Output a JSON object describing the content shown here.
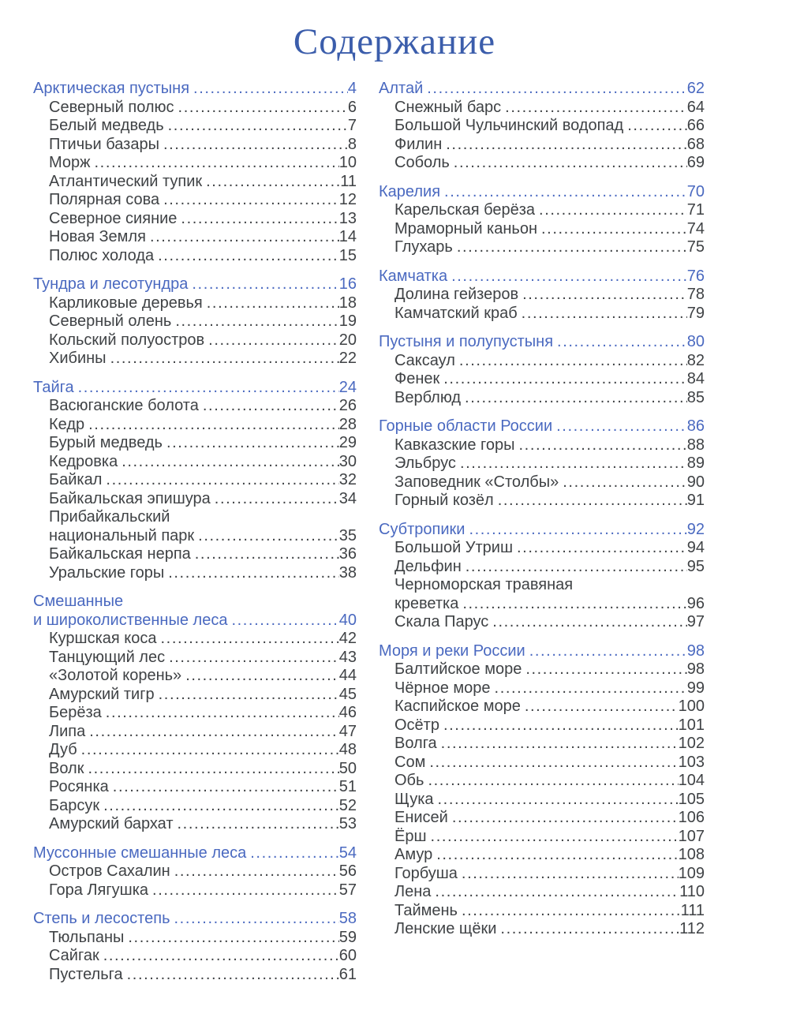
{
  "title": "Содержание",
  "colors": {
    "title_blue": "#3b5dab",
    "heading_blue": "#4a69c0",
    "text_gray": "#3f4245"
  },
  "columns": [
    {
      "sections": [
        {
          "title": "Арктическая пустыня",
          "page": "4",
          "items": [
            [
              "Северный полюс",
              "6"
            ],
            [
              "Белый медведь",
              "7"
            ],
            [
              "Птичьи базары",
              "8"
            ],
            [
              "Морж",
              "10"
            ],
            [
              "Атлантический тупик",
              "11"
            ],
            [
              "Полярная сова",
              "12"
            ],
            [
              "Северное сияние",
              "13"
            ],
            [
              "Новая Земля",
              "14"
            ],
            [
              "Полюс холода",
              "15"
            ]
          ]
        },
        {
          "title": "Тундра и лесотундра",
          "page": "16",
          "items": [
            [
              "Карликовые деревья",
              "18"
            ],
            [
              "Северный олень",
              "19"
            ],
            [
              "Кольский полуостров",
              "20"
            ],
            [
              "Хибины",
              "22"
            ]
          ]
        },
        {
          "title": "Тайга",
          "page": "24",
          "items": [
            [
              "Васюганские болота",
              "26"
            ],
            [
              "Кедр",
              "28"
            ],
            [
              "Бурый медведь",
              "29"
            ],
            [
              "Кедровка",
              "30"
            ],
            [
              "Байкал",
              "32"
            ],
            [
              "Байкальская эпишура",
              "34"
            ],
            [
              "Прибайкальский\nнациональный парк",
              "35"
            ],
            [
              "Байкальская нерпа",
              "36"
            ],
            [
              "Уральские горы",
              "38"
            ]
          ]
        },
        {
          "title": "Смешанные\nи широколиственные леса",
          "page": "40",
          "items": [
            [
              "Куршская коса",
              "42"
            ],
            [
              "Танцующий лес",
              "43"
            ],
            [
              "«Золотой корень»",
              "44"
            ],
            [
              "Амурский тигр",
              "45"
            ],
            [
              "Берёза",
              "46"
            ],
            [
              "Липа",
              "47"
            ],
            [
              "Дуб",
              "48"
            ],
            [
              "Волк",
              "50"
            ],
            [
              "Росянка",
              "51"
            ],
            [
              "Барсук",
              "52"
            ],
            [
              "Амурский бархат",
              "53"
            ]
          ]
        },
        {
          "title": "Муссонные смешанные леса",
          "page": "54",
          "items": [
            [
              "Остров Сахалин",
              "56"
            ],
            [
              "Гора Лягушка",
              "57"
            ]
          ]
        },
        {
          "title": "Степь и лесостепь",
          "page": "58",
          "items": [
            [
              "Тюльпаны",
              "59"
            ],
            [
              "Сайгак",
              "60"
            ],
            [
              "Пустельга",
              "61"
            ]
          ]
        }
      ]
    },
    {
      "sections": [
        {
          "title": "Алтай",
          "page": "62",
          "items": [
            [
              "Снежный барс",
              "64"
            ],
            [
              "Большой Чульчинский водопад",
              "66"
            ],
            [
              "Филин",
              "68"
            ],
            [
              "Соболь",
              "69"
            ]
          ]
        },
        {
          "title": "Карелия",
          "page": "70",
          "items": [
            [
              "Карельская берёза",
              "71"
            ],
            [
              "Мраморный каньон",
              "74"
            ],
            [
              "Глухарь",
              "75"
            ]
          ]
        },
        {
          "title": "Камчатка",
          "page": "76",
          "items": [
            [
              "Долина гейзеров",
              "78"
            ],
            [
              "Камчатский краб",
              "79"
            ]
          ]
        },
        {
          "title": "Пустыня и полупустыня",
          "page": "80",
          "items": [
            [
              "Саксаул",
              "82"
            ],
            [
              "Фенек",
              "84"
            ],
            [
              "Верблюд",
              "85"
            ]
          ]
        },
        {
          "title": "Горные области России",
          "page": "86",
          "items": [
            [
              "Кавказские горы",
              "88"
            ],
            [
              "Эльбрус",
              "89"
            ],
            [
              "Заповедник «Столбы»",
              "90"
            ],
            [
              "Горный козёл",
              "91"
            ]
          ]
        },
        {
          "title": "Субтропики",
          "page": "92",
          "items": [
            [
              "Большой Утриш",
              "94"
            ],
            [
              "Дельфин",
              "95"
            ],
            [
              "Черноморская травяная\nкреветка",
              "96"
            ],
            [
              "Скала Парус",
              "97"
            ]
          ]
        },
        {
          "title": "Моря и реки России",
          "page": "98",
          "items": [
            [
              "Балтийское море",
              "98"
            ],
            [
              "Чёрное море",
              "99"
            ],
            [
              "Каспийское море",
              "100"
            ],
            [
              "Осётр",
              "101"
            ],
            [
              "Волга",
              "102"
            ],
            [
              "Сом",
              "103"
            ],
            [
              "Обь",
              "104"
            ],
            [
              "Щука",
              "105"
            ],
            [
              "Енисей",
              "106"
            ],
            [
              "Ёрш",
              "107"
            ],
            [
              "Амур",
              "108"
            ],
            [
              "Горбуша",
              "109"
            ],
            [
              "Лена",
              "110"
            ],
            [
              "Таймень",
              "111"
            ],
            [
              "Ленские щёки",
              "112"
            ]
          ]
        }
      ]
    }
  ]
}
